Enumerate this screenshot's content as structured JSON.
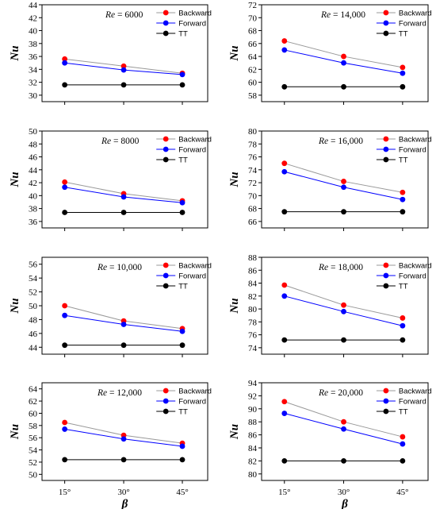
{
  "figure": {
    "x_axis_label": "β",
    "y_axis_label": "Nu"
  },
  "chart_data": [
    {
      "type": "line",
      "re_prefix": "Re",
      "re_value": "= 6000",
      "ylabel": "Nu",
      "xlabel": "",
      "categories": [
        "15°",
        "30°",
        "45°"
      ],
      "ylim": [
        29,
        44
      ],
      "yticks": [
        30,
        32,
        34,
        36,
        38,
        40,
        42,
        44
      ],
      "series": [
        {
          "name": "Backward",
          "values": [
            35.6,
            34.5,
            33.4
          ],
          "color": "#ff0000",
          "line_color": "#999999"
        },
        {
          "name": "Forward",
          "values": [
            35.0,
            33.9,
            33.2
          ],
          "color": "#0000ff",
          "line_color": "#0000ff"
        },
        {
          "name": "TT",
          "values": [
            31.6,
            31.6,
            31.6
          ],
          "color": "#000000",
          "line_color": "#000000"
        }
      ]
    },
    {
      "type": "line",
      "re_prefix": "Re",
      "re_value": "= 14,000",
      "ylabel": "Nu",
      "xlabel": "",
      "categories": [
        "15°",
        "30°",
        "45°"
      ],
      "ylim": [
        57,
        72
      ],
      "yticks": [
        58,
        60,
        62,
        64,
        66,
        68,
        70,
        72
      ],
      "series": [
        {
          "name": "Backward",
          "values": [
            66.4,
            64.0,
            62.3
          ],
          "color": "#ff0000",
          "line_color": "#999999"
        },
        {
          "name": "Forward",
          "values": [
            65.0,
            63.0,
            61.4
          ],
          "color": "#0000ff",
          "line_color": "#0000ff"
        },
        {
          "name": "TT",
          "values": [
            59.3,
            59.3,
            59.3
          ],
          "color": "#000000",
          "line_color": "#000000"
        }
      ]
    },
    {
      "type": "line",
      "re_prefix": "Re",
      "re_value": "= 8000",
      "ylabel": "Nu",
      "xlabel": "",
      "categories": [
        "15°",
        "30°",
        "45°"
      ],
      "ylim": [
        35,
        50
      ],
      "yticks": [
        36,
        38,
        40,
        42,
        44,
        46,
        48,
        50
      ],
      "series": [
        {
          "name": "Backward",
          "values": [
            42.1,
            40.3,
            39.2
          ],
          "color": "#ff0000",
          "line_color": "#999999"
        },
        {
          "name": "Forward",
          "values": [
            41.3,
            39.8,
            38.9
          ],
          "color": "#0000ff",
          "line_color": "#0000ff"
        },
        {
          "name": "TT",
          "values": [
            37.4,
            37.4,
            37.4
          ],
          "color": "#000000",
          "line_color": "#000000"
        }
      ]
    },
    {
      "type": "line",
      "re_prefix": "Re",
      "re_value": "= 16,000",
      "ylabel": "Nu",
      "xlabel": "",
      "categories": [
        "15°",
        "30°",
        "45°"
      ],
      "ylim": [
        65,
        80
      ],
      "yticks": [
        66,
        68,
        70,
        72,
        74,
        76,
        78,
        80
      ],
      "series": [
        {
          "name": "Backward",
          "values": [
            75.0,
            72.2,
            70.5
          ],
          "color": "#ff0000",
          "line_color": "#999999"
        },
        {
          "name": "Forward",
          "values": [
            73.7,
            71.3,
            69.4
          ],
          "color": "#0000ff",
          "line_color": "#0000ff"
        },
        {
          "name": "TT",
          "values": [
            67.5,
            67.5,
            67.5
          ],
          "color": "#000000",
          "line_color": "#000000"
        }
      ]
    },
    {
      "type": "line",
      "re_prefix": "Re",
      "re_value": "= 10,000",
      "ylabel": "Nu",
      "xlabel": "",
      "categories": [
        "15°",
        "30°",
        "45°"
      ],
      "ylim": [
        43,
        57
      ],
      "yticks": [
        44,
        46,
        48,
        50,
        52,
        54,
        56
      ],
      "series": [
        {
          "name": "Backward",
          "values": [
            50.0,
            47.8,
            46.7
          ],
          "color": "#ff0000",
          "line_color": "#999999"
        },
        {
          "name": "Forward",
          "values": [
            48.6,
            47.3,
            46.3
          ],
          "color": "#0000ff",
          "line_color": "#0000ff"
        },
        {
          "name": "TT",
          "values": [
            44.3,
            44.3,
            44.3
          ],
          "color": "#000000",
          "line_color": "#000000"
        }
      ]
    },
    {
      "type": "line",
      "re_prefix": "Re",
      "re_value": "= 18,000",
      "ylabel": "Nu",
      "xlabel": "",
      "categories": [
        "15°",
        "30°",
        "45°"
      ],
      "ylim": [
        73,
        88
      ],
      "yticks": [
        74,
        76,
        78,
        80,
        82,
        84,
        86,
        88
      ],
      "series": [
        {
          "name": "Backward",
          "values": [
            83.7,
            80.6,
            78.6
          ],
          "color": "#ff0000",
          "line_color": "#999999"
        },
        {
          "name": "Forward",
          "values": [
            82.0,
            79.6,
            77.4
          ],
          "color": "#0000ff",
          "line_color": "#0000ff"
        },
        {
          "name": "TT",
          "values": [
            75.2,
            75.2,
            75.2
          ],
          "color": "#000000",
          "line_color": "#000000"
        }
      ]
    },
    {
      "type": "line",
      "re_prefix": "Re",
      "re_value": "= 12,000",
      "ylabel": "Nu",
      "xlabel": "β",
      "categories": [
        "15°",
        "30°",
        "45°"
      ],
      "ylim": [
        49,
        65
      ],
      "yticks": [
        50,
        52,
        54,
        56,
        58,
        60,
        62,
        64
      ],
      "series": [
        {
          "name": "Backward",
          "values": [
            58.5,
            56.4,
            55.1
          ],
          "color": "#ff0000",
          "line_color": "#999999"
        },
        {
          "name": "Forward",
          "values": [
            57.4,
            55.8,
            54.6
          ],
          "color": "#0000ff",
          "line_color": "#0000ff"
        },
        {
          "name": "TT",
          "values": [
            52.4,
            52.4,
            52.4
          ],
          "color": "#000000",
          "line_color": "#000000"
        }
      ]
    },
    {
      "type": "line",
      "re_prefix": "Re",
      "re_value": "= 20,000",
      "ylabel": "Nu",
      "xlabel": "β",
      "categories": [
        "15°",
        "30°",
        "45°"
      ],
      "ylim": [
        79,
        94
      ],
      "yticks": [
        80,
        82,
        84,
        86,
        88,
        90,
        92,
        94
      ],
      "series": [
        {
          "name": "Backward",
          "values": [
            91.1,
            88.0,
            85.7
          ],
          "color": "#ff0000",
          "line_color": "#999999"
        },
        {
          "name": "Forward",
          "values": [
            89.3,
            86.9,
            84.6
          ],
          "color": "#0000ff",
          "line_color": "#0000ff"
        },
        {
          "name": "TT",
          "values": [
            82.0,
            82.0,
            82.0
          ],
          "color": "#000000",
          "line_color": "#000000"
        }
      ]
    }
  ]
}
